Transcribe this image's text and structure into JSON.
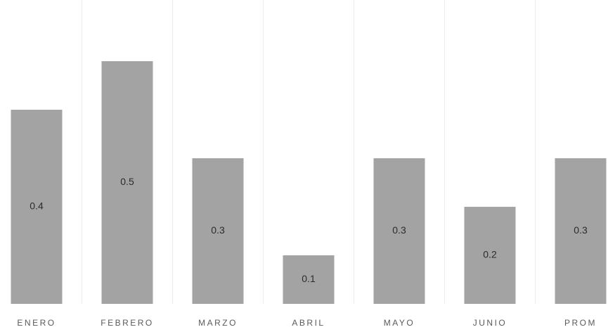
{
  "chart_data": {
    "type": "bar",
    "categories": [
      "ENERO",
      "FEBRERO",
      "MARZO",
      "ABRIL",
      "MAYO",
      "JUNIO",
      "PROM"
    ],
    "values": [
      0.4,
      0.5,
      0.3,
      0.1,
      0.3,
      0.2,
      0.3
    ],
    "data_labels": [
      "0.4",
      "0.5",
      "0.3",
      "0.1",
      "0.3",
      "0.2",
      "0.3"
    ],
    "title": "",
    "xlabel": "",
    "ylabel": "",
    "ylim": [
      0,
      0.6
    ],
    "grid": true,
    "legend": "none",
    "bar_color": "#a3a3a3"
  }
}
